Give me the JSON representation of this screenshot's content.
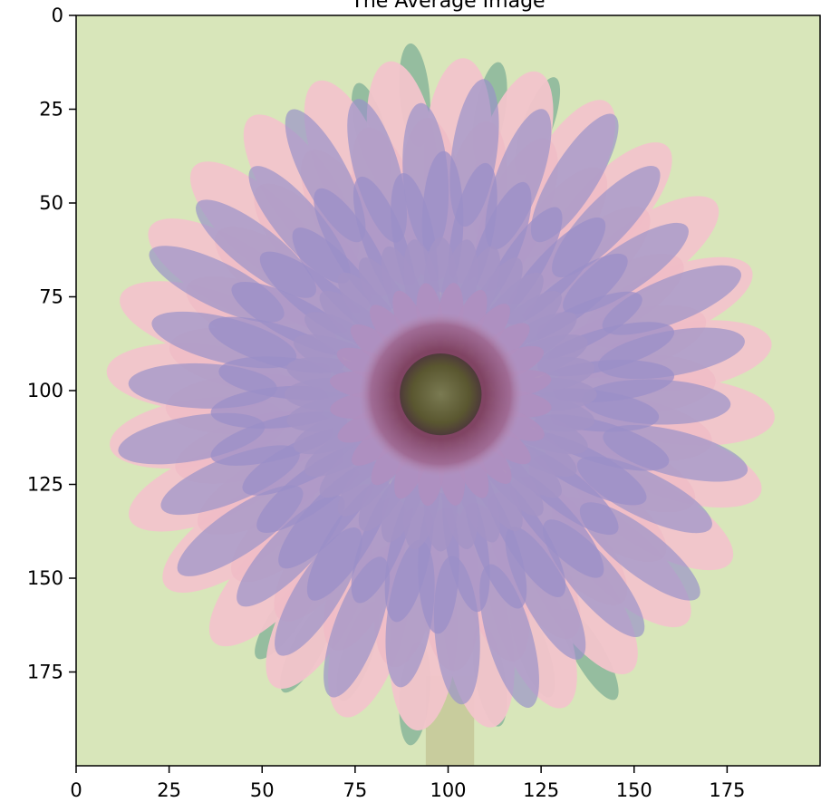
{
  "chart_data": {
    "type": "image",
    "title": "The Average Image",
    "xlabel": "",
    "ylabel": "",
    "image_size": [
      200,
      200
    ],
    "xlim": [
      0,
      199
    ],
    "ylim": [
      199,
      0
    ],
    "x_ticks": [
      0,
      25,
      50,
      75,
      100,
      125,
      150,
      175
    ],
    "y_ticks": [
      0,
      25,
      50,
      75,
      100,
      125,
      150,
      175
    ],
    "grid": false,
    "legend": "none",
    "image_content": "averaged blend of several flower photos (pink gerbera and lilac daisy) on a pale green background",
    "colors": {
      "background": "#d8e6ba",
      "pink_petals": "#f2c4cb",
      "lilac_petals": "#9a93c9",
      "center_ring": "#8c4a6a",
      "disc": "#5b5a2e",
      "leaves": "#5e9a88",
      "stem": "#c7c99a"
    }
  }
}
